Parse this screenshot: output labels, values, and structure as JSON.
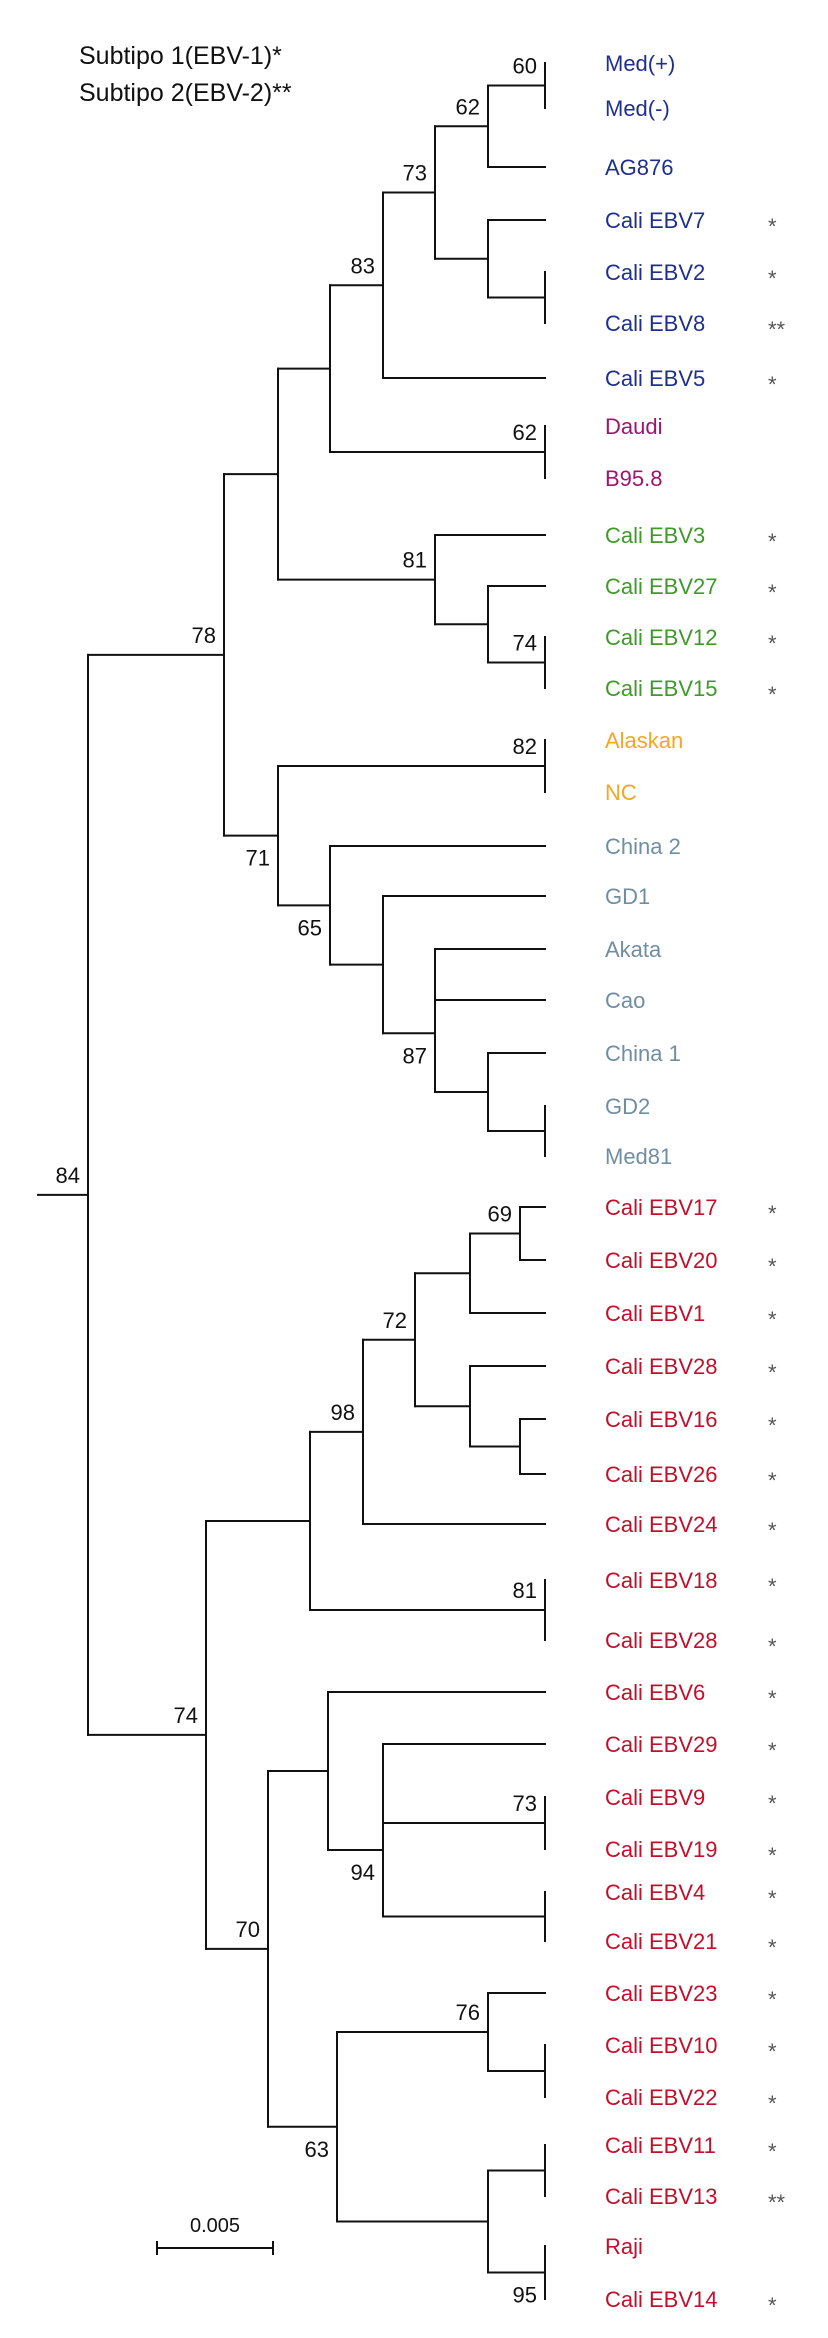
{
  "legend": {
    "subtype1": "Subtipo 1(EBV-1)*",
    "subtype2": "Subtipo 2(EBV-2)**"
  },
  "colors": {
    "branch": "#111111",
    "bootstrap": "#111111",
    "marker": "#555555",
    "blue_group": "#1f2f8f",
    "magenta_group": "#a0146e",
    "green_group": "#3f9a2a",
    "orange_group": "#f5a623",
    "slate_group": "#6f8ea3",
    "red_group": "#c0102a"
  },
  "scale_bar": {
    "label": "0.005"
  },
  "taxa": [
    {
      "name": "Med(+)",
      "color": "#1f2f8f",
      "marker": ""
    },
    {
      "name": "Med(-)",
      "color": "#1f2f8f",
      "marker": ""
    },
    {
      "name": "AG876",
      "color": "#1f2f8f",
      "marker": ""
    },
    {
      "name": "Cali EBV7",
      "color": "#1f2f8f",
      "marker": "*"
    },
    {
      "name": "Cali EBV2",
      "color": "#1f2f8f",
      "marker": "*"
    },
    {
      "name": "Cali EBV8",
      "color": "#1f2f8f",
      "marker": "**"
    },
    {
      "name": "Cali EBV5",
      "color": "#1f2f8f",
      "marker": "*"
    },
    {
      "name": "Daudi",
      "color": "#a0146e",
      "marker": ""
    },
    {
      "name": "B95.8",
      "color": "#a0146e",
      "marker": ""
    },
    {
      "name": "Cali EBV3",
      "color": "#3f9a2a",
      "marker": "*"
    },
    {
      "name": "Cali EBV27",
      "color": "#3f9a2a",
      "marker": "*"
    },
    {
      "name": "Cali EBV12",
      "color": "#3f9a2a",
      "marker": "*"
    },
    {
      "name": "Cali EBV15",
      "color": "#3f9a2a",
      "marker": "*"
    },
    {
      "name": "Alaskan",
      "color": "#f5a623",
      "marker": ""
    },
    {
      "name": "NC",
      "color": "#f5a623",
      "marker": ""
    },
    {
      "name": "China 2",
      "color": "#6f8ea3",
      "marker": ""
    },
    {
      "name": "GD1",
      "color": "#6f8ea3",
      "marker": ""
    },
    {
      "name": "Akata",
      "color": "#6f8ea3",
      "marker": ""
    },
    {
      "name": "Cao",
      "color": "#6f8ea3",
      "marker": ""
    },
    {
      "name": "China 1",
      "color": "#6f8ea3",
      "marker": ""
    },
    {
      "name": "GD2",
      "color": "#6f8ea3",
      "marker": ""
    },
    {
      "name": "Med81",
      "color": "#6f8ea3",
      "marker": ""
    },
    {
      "name": "Cali EBV17",
      "color": "#c0102a",
      "marker": "*"
    },
    {
      "name": "Cali EBV20",
      "color": "#c0102a",
      "marker": "*"
    },
    {
      "name": "Cali EBV1",
      "color": "#c0102a",
      "marker": "*"
    },
    {
      "name": "Cali EBV28",
      "color": "#c0102a",
      "marker": "*"
    },
    {
      "name": "Cali EBV16",
      "color": "#c0102a",
      "marker": "*"
    },
    {
      "name": "Cali EBV26",
      "color": "#c0102a",
      "marker": "*"
    },
    {
      "name": "Cali EBV24",
      "color": "#c0102a",
      "marker": "*"
    },
    {
      "name": "Cali EBV18",
      "color": "#c0102a",
      "marker": "*"
    },
    {
      "name": "Cali EBV28",
      "color": "#c0102a",
      "marker": "*"
    },
    {
      "name": "Cali EBV6",
      "color": "#c0102a",
      "marker": "*"
    },
    {
      "name": "Cali EBV29",
      "color": "#c0102a",
      "marker": "*"
    },
    {
      "name": "Cali EBV9",
      "color": "#c0102a",
      "marker": "*"
    },
    {
      "name": "Cali EBV19",
      "color": "#c0102a",
      "marker": "*"
    },
    {
      "name": "Cali EBV4",
      "color": "#c0102a",
      "marker": "*"
    },
    {
      "name": "Cali EBV21",
      "color": "#c0102a",
      "marker": "*"
    },
    {
      "name": "Cali EBV23",
      "color": "#c0102a",
      "marker": "*"
    },
    {
      "name": "Cali EBV10",
      "color": "#c0102a",
      "marker": "*"
    },
    {
      "name": "Cali EBV22",
      "color": "#c0102a",
      "marker": "*"
    },
    {
      "name": "Cali EBV11",
      "color": "#c0102a",
      "marker": "*"
    },
    {
      "name": "Cali EBV13",
      "color": "#c0102a",
      "marker": "**"
    },
    {
      "name": "Raji",
      "color": "#c0102a",
      "marker": ""
    },
    {
      "name": "Cali EBV14",
      "color": "#c0102a",
      "marker": "*"
    }
  ],
  "bootstrap_values": {
    "n_med": "60",
    "n_medag": "62",
    "n_cali7": "73",
    "n_blue": "83",
    "n_daudi": "62",
    "n_green": "81",
    "n_g1215": "74",
    "n_upper": "78",
    "n_alaskan": "82",
    "n_lower": "71",
    "n_asia": "65",
    "n_chgd": "87",
    "n_root": "84",
    "n_c1720": "69",
    "n_c17_26": "72",
    "n_c17_24": "98",
    "n_c1828": "81",
    "n_red": "74",
    "n_c6_14": "70",
    "n_c919": "73",
    "n_c6_21": "94",
    "n_c23_22": "76",
    "n_c23_14": "63",
    "n_c11_14": "95"
  }
}
